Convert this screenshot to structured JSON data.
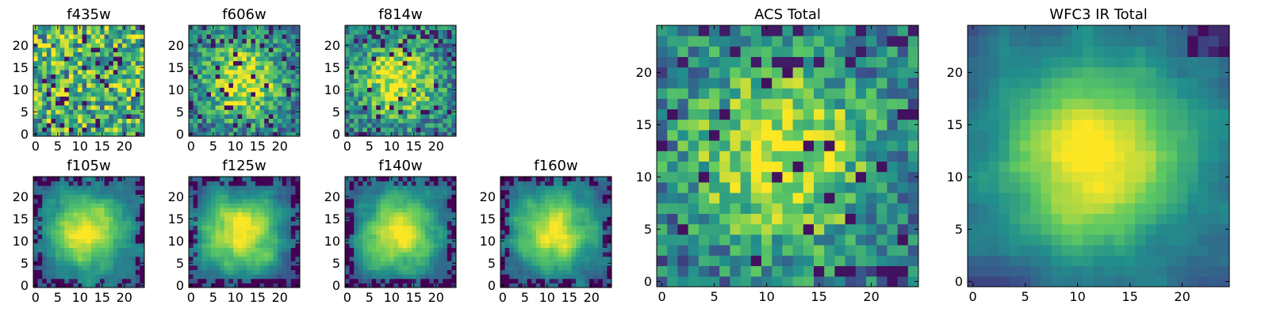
{
  "chart_data": [
    {
      "type": "heatmap",
      "title": "f435w",
      "xticks": [
        0,
        5,
        10,
        15,
        20
      ],
      "yticks": [
        0,
        5,
        10,
        15,
        20
      ],
      "xlim": [
        0,
        24
      ],
      "ylim": [
        0,
        24
      ],
      "grid_size": 25,
      "pattern": "noisy-flat",
      "seed": 11
    },
    {
      "type": "heatmap",
      "title": "f606w",
      "xticks": [
        0,
        5,
        10,
        15,
        20
      ],
      "yticks": [
        0,
        5,
        10,
        15,
        20
      ],
      "xlim": [
        0,
        24
      ],
      "ylim": [
        0,
        24
      ],
      "grid_size": 25,
      "pattern": "noisy-peak",
      "seed": 23
    },
    {
      "type": "heatmap",
      "title": "f814w",
      "xticks": [
        0,
        5,
        10,
        15,
        20
      ],
      "yticks": [
        0,
        5,
        10,
        15,
        20
      ],
      "xlim": [
        0,
        24
      ],
      "ylim": [
        0,
        24
      ],
      "grid_size": 25,
      "pattern": "noisy-peak",
      "seed": 37
    },
    {
      "type": "heatmap",
      "title": "f105w",
      "xticks": [
        0,
        5,
        10,
        15,
        20
      ],
      "yticks": [
        0,
        5,
        10,
        15,
        20
      ],
      "xlim": [
        0,
        24
      ],
      "ylim": [
        0,
        24
      ],
      "grid_size": 25,
      "pattern": "peak",
      "seed": 41
    },
    {
      "type": "heatmap",
      "title": "f125w",
      "xticks": [
        0,
        5,
        10,
        15,
        20
      ],
      "yticks": [
        0,
        5,
        10,
        15,
        20
      ],
      "xlim": [
        0,
        24
      ],
      "ylim": [
        0,
        24
      ],
      "grid_size": 25,
      "pattern": "peak",
      "seed": 53
    },
    {
      "type": "heatmap",
      "title": "f140w",
      "xticks": [
        0,
        5,
        10,
        15,
        20
      ],
      "yticks": [
        0,
        5,
        10,
        15,
        20
      ],
      "xlim": [
        0,
        24
      ],
      "ylim": [
        0,
        24
      ],
      "grid_size": 25,
      "pattern": "peak",
      "seed": 67
    },
    {
      "type": "heatmap",
      "title": "f160w",
      "xticks": [
        0,
        5,
        10,
        15,
        20
      ],
      "yticks": [
        0,
        5,
        10,
        15,
        20
      ],
      "xlim": [
        0,
        24
      ],
      "ylim": [
        0,
        24
      ],
      "grid_size": 25,
      "pattern": "peak",
      "seed": 79
    },
    {
      "type": "heatmap",
      "title": "ACS Total",
      "xticks": [
        0,
        5,
        10,
        15,
        20
      ],
      "yticks": [
        0,
        5,
        10,
        15,
        20
      ],
      "xlim": [
        0,
        24
      ],
      "ylim": [
        0,
        24
      ],
      "grid_size": 25,
      "pattern": "noisy-peak",
      "seed": 83
    },
    {
      "type": "heatmap",
      "title": "WFC3 IR Total",
      "xticks": [
        0,
        5,
        10,
        15,
        20
      ],
      "yticks": [
        0,
        5,
        10,
        15,
        20
      ],
      "xlim": [
        0,
        24
      ],
      "ylim": [
        0,
        24
      ],
      "grid_size": 25,
      "pattern": "smooth-peak",
      "seed": 97
    }
  ],
  "colormap": [
    "#440154",
    "#3b528b",
    "#21918c",
    "#5ec962",
    "#fde725"
  ]
}
